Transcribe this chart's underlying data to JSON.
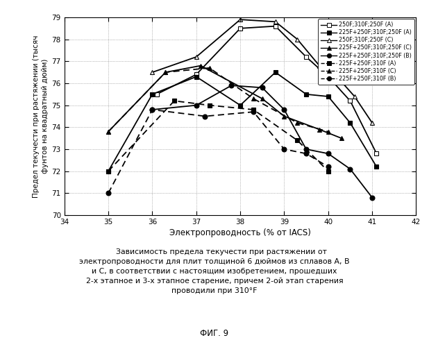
{
  "xlabel": "Электропроводность (% от IACS)",
  "ylabel": "Предел текучести при растяжении (тысяч\nфунтов на квадратный дюйм)",
  "xlim": [
    34,
    42
  ],
  "ylim": [
    70,
    79
  ],
  "xticks": [
    34,
    35,
    36,
    37,
    38,
    39,
    40,
    41,
    42
  ],
  "yticks": [
    70,
    71,
    72,
    73,
    74,
    75,
    76,
    77,
    78,
    79
  ],
  "series": [
    {
      "label": "250F;310F;250F (A)",
      "marker": "s",
      "marker_fill": "white",
      "linestyle": "-",
      "x": [
        36.1,
        37.0,
        38.0,
        38.8,
        39.5,
        40.0,
        40.5,
        41.1
      ],
      "y": [
        75.5,
        76.4,
        78.5,
        78.6,
        77.2,
        76.3,
        75.2,
        72.8
      ]
    },
    {
      "label": "225F+250F;310F;250F (A)",
      "marker": "s",
      "marker_fill": "black",
      "linestyle": "-",
      "x": [
        35.0,
        36.0,
        37.0,
        38.0,
        38.8,
        39.5,
        40.0,
        40.5,
        41.1
      ],
      "y": [
        72.0,
        75.5,
        76.3,
        75.0,
        76.5,
        75.5,
        75.4,
        74.2,
        72.2
      ]
    },
    {
      "label": "250F;310F;250F (C)",
      "marker": "^",
      "marker_fill": "white",
      "linestyle": "-",
      "x": [
        36.0,
        37.0,
        38.0,
        38.8,
        39.3,
        39.8,
        40.2,
        40.6,
        41.0
      ],
      "y": [
        76.5,
        77.2,
        78.9,
        78.8,
        78.0,
        76.8,
        76.3,
        75.4,
        74.2
      ]
    },
    {
      "label": "225F+250F;310F;250F (C)",
      "marker": "^",
      "marker_fill": "black",
      "linestyle": "-",
      "x": [
        35.0,
        36.3,
        37.1,
        38.5,
        39.0,
        39.8,
        40.3
      ],
      "y": [
        73.8,
        76.5,
        76.8,
        75.3,
        74.5,
        73.9,
        73.5
      ]
    },
    {
      "label": "225F+250F;310F;250F (B)",
      "marker": "o",
      "marker_fill": "black",
      "linestyle": "-",
      "x": [
        36.0,
        37.0,
        37.8,
        38.5,
        39.0,
        39.5,
        40.0,
        40.5,
        41.0
      ],
      "y": [
        74.8,
        75.0,
        75.9,
        75.8,
        74.8,
        73.0,
        72.8,
        72.1,
        70.8
      ]
    },
    {
      "label": "225F+250F;310F (A)",
      "marker": "s",
      "marker_fill": "black",
      "linestyle": "--",
      "x": [
        35.0,
        36.5,
        37.3,
        38.3,
        39.3,
        40.0
      ],
      "y": [
        72.0,
        75.2,
        75.0,
        74.8,
        73.4,
        72.0
      ]
    },
    {
      "label": "225F+250F;310F (C)",
      "marker": "^",
      "marker_fill": "black",
      "linestyle": "--",
      "x": [
        35.0,
        36.3,
        37.3,
        38.3,
        39.3,
        40.0
      ],
      "y": [
        73.8,
        76.5,
        76.7,
        75.3,
        74.2,
        73.8
      ]
    },
    {
      "label": "225F+250F;310F (B)",
      "marker": "o",
      "marker_fill": "black",
      "linestyle": "--",
      "x": [
        35.0,
        36.0,
        37.2,
        38.3,
        39.0,
        39.5,
        40.0
      ],
      "y": [
        71.0,
        74.8,
        74.5,
        74.7,
        73.0,
        72.8,
        72.2
      ]
    }
  ],
  "legend_entries": [
    {
      "label": "250F;310F;250F (A)",
      "marker": "s",
      "mfc": "white",
      "ls": "-"
    },
    {
      "label": "225F+250F;310F;250F (A)",
      "marker": "s",
      "mfc": "black",
      "ls": "-"
    },
    {
      "label": "250F;310F;250F (C)",
      "marker": "^",
      "mfc": "white",
      "ls": "-"
    },
    {
      "label": "225F+250F;310F;250F (C)",
      "marker": "^",
      "mfc": "black",
      "ls": "-"
    },
    {
      "label": "225F+250F;310F;250F (B)",
      "marker": "o",
      "mfc": "black",
      "ls": "-"
    },
    {
      "label": "225F+250F;310F (A)",
      "marker": "s",
      "mfc": "black",
      "ls": "--"
    },
    {
      "label": "225F+250F;310F (C)",
      "marker": "^",
      "mfc": "black",
      "ls": "--"
    },
    {
      "label": "225F+250F;310F (B)",
      "marker": "o",
      "mfc": "black",
      "ls": "--"
    }
  ],
  "caption": "      Зависимость предела текучести при растяжении от\nэлектропроводности для плит толщиной 6 дюймов из сплавов А, В\nи С, в соответствии с настоящим изобретением, прошедших\n2-х этапное и 3-х этапное старение, причем 2-ой этап старения\nпроводили при 310°F",
  "fig_label": "ФИГ. 9"
}
